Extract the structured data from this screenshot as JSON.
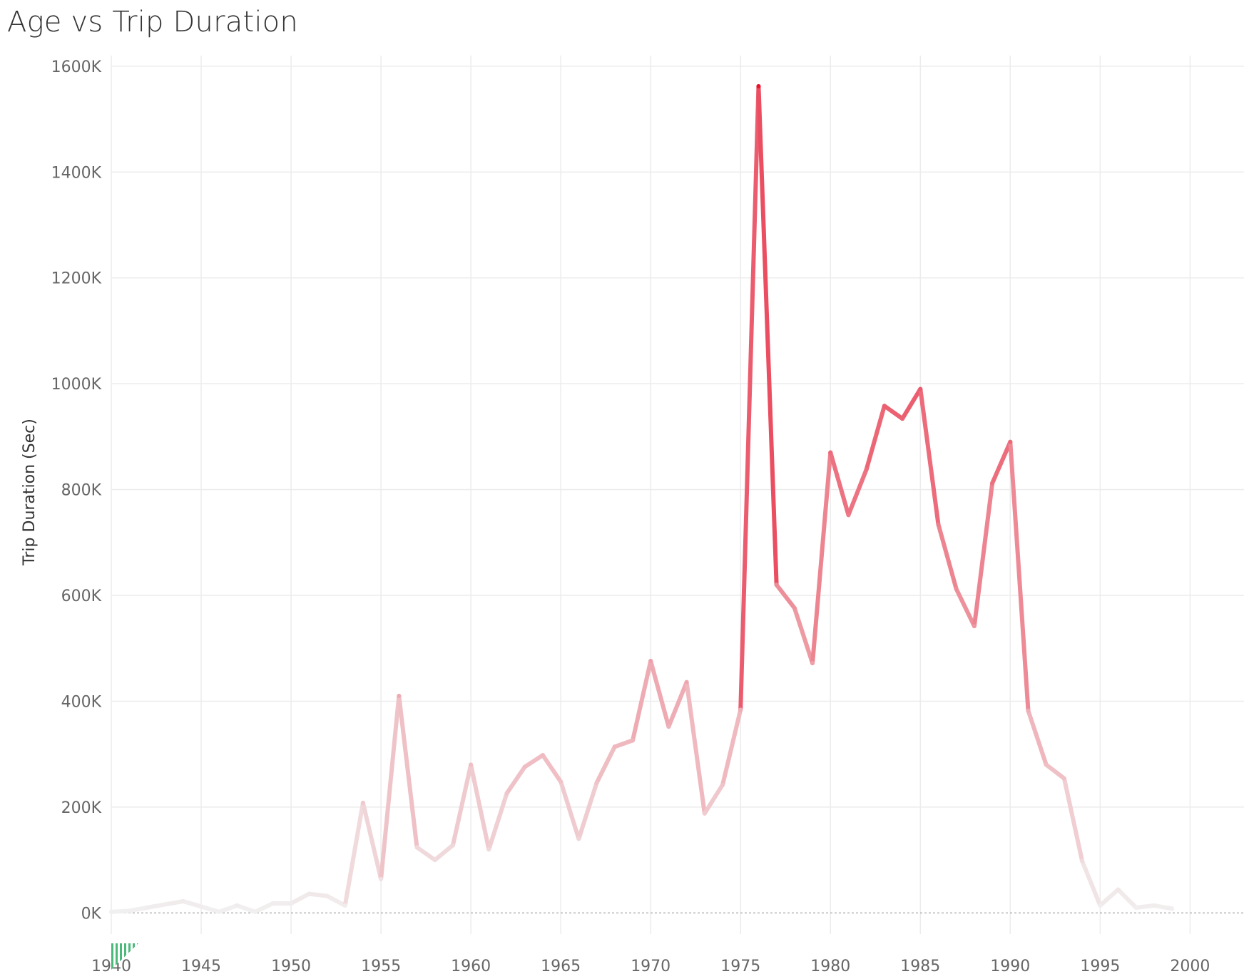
{
  "title": "Age vs Trip Duration",
  "chart_data": {
    "type": "line",
    "title": "Age vs Trip Duration",
    "xlabel": "",
    "ylabel": "Trip Duration (Sec)",
    "xlim": [
      1940,
      2003
    ],
    "ylim": [
      -40000,
      1620000
    ],
    "xticks": [
      1940,
      1945,
      1950,
      1955,
      1960,
      1965,
      1970,
      1975,
      1980,
      1985,
      1990,
      1995,
      2000
    ],
    "xtick_labels": [
      "1940",
      "1945",
      "1950",
      "1955",
      "1960",
      "1965",
      "1970",
      "1975",
      "1980",
      "1985",
      "1990",
      "1995",
      "2000"
    ],
    "yticks": [
      0,
      200000,
      400000,
      600000,
      800000,
      1000000,
      1200000,
      1400000,
      1600000
    ],
    "ytick_labels": [
      "0K",
      "200K",
      "400K",
      "600K",
      "800K",
      "1000K",
      "1200K",
      "1400K",
      "1600K"
    ],
    "grid": true,
    "color_scale": {
      "low": "#f1f1f1",
      "high": "#e8142d",
      "min": 0,
      "max": 1560000
    },
    "series": [
      {
        "x": [
          1940,
          1941,
          1942,
          1943,
          1944,
          1945,
          1946,
          1947,
          1948,
          1949,
          1950,
          1951,
          1952,
          1953,
          1954,
          1955,
          1956,
          1957,
          1958,
          1959,
          1960,
          1961,
          1962,
          1963,
          1964,
          1965,
          1966,
          1967,
          1968,
          1969,
          1970,
          1971,
          1972,
          1973,
          1974,
          1975,
          1976,
          1977,
          1978,
          1979,
          1980,
          1981,
          1982,
          1983,
          1984,
          1985,
          1986,
          1987,
          1988,
          1989,
          1990,
          1991,
          1992,
          1993,
          1994,
          1995,
          1996,
          1997,
          1998,
          1999
        ],
        "values": [
          2000,
          4000,
          10000,
          16000,
          22000,
          12000,
          2000,
          14000,
          2000,
          18000,
          18000,
          36000,
          32000,
          14000,
          208000,
          64000,
          410000,
          124000,
          100000,
          128000,
          280000,
          120000,
          226000,
          276000,
          298000,
          248000,
          140000,
          246000,
          314000,
          326000,
          476000,
          352000,
          436000,
          188000,
          242000,
          384000,
          1562000,
          620000,
          576000,
          472000,
          870000,
          752000,
          838000,
          958000,
          934000,
          990000,
          734000,
          612000,
          542000,
          812000,
          890000,
          382000,
          280000,
          254000,
          98000,
          14000,
          44000,
          10000,
          14000,
          8000
        ]
      }
    ]
  },
  "colors": {
    "grid": "#ececec",
    "zero_line": "#9a9a9a",
    "filter_marker": "#4bb97a"
  }
}
